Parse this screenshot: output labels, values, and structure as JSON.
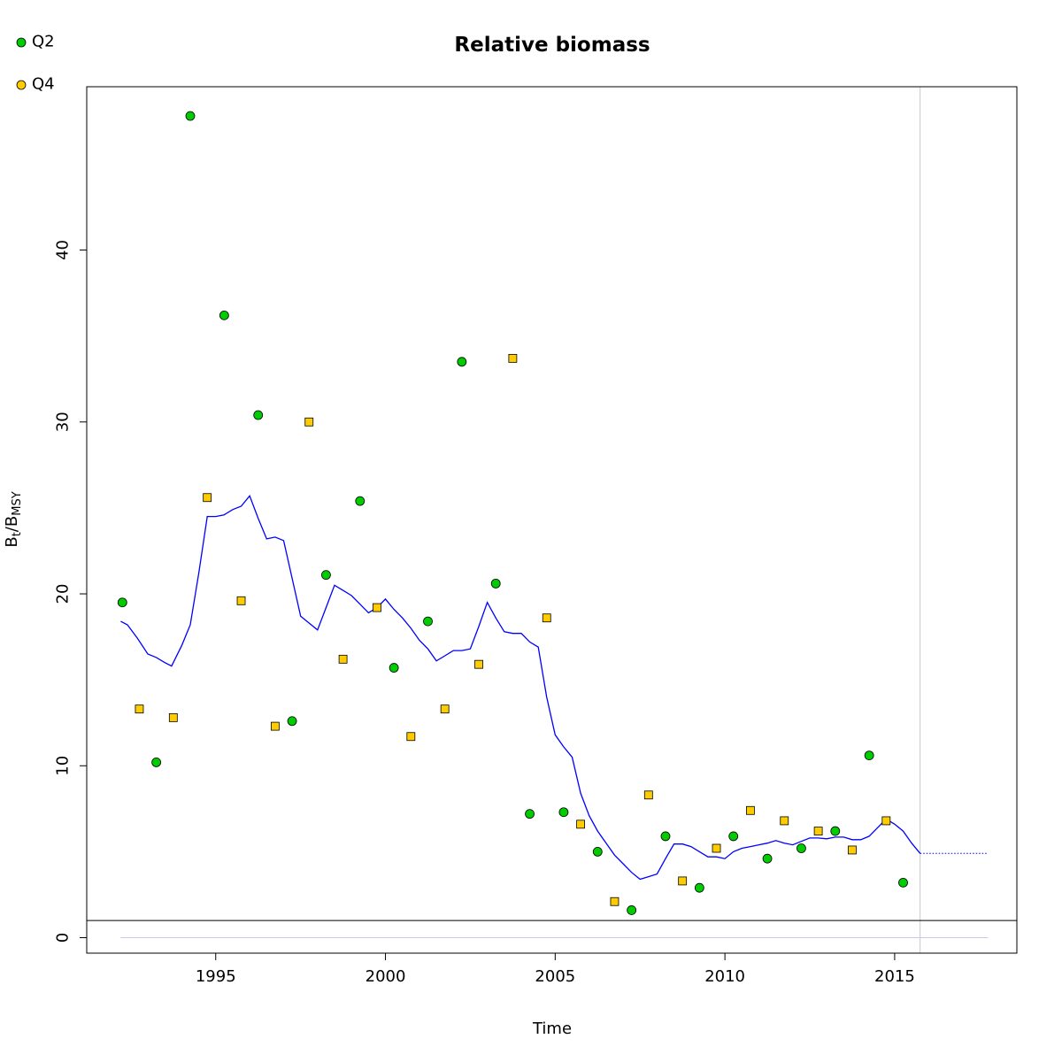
{
  "chart_data": {
    "type": "scatter",
    "title": "Relative biomass",
    "xlabel": "Time",
    "ylabel": {
      "base": "B",
      "sub1": "t",
      "mid": "/B",
      "sub2": "MSY"
    },
    "xlim": [
      1991.2,
      2018.6
    ],
    "ylim": [
      -0.9,
      49.5
    ],
    "x_ticks": [
      1995,
      2000,
      2005,
      2010,
      2015
    ],
    "y_ticks": [
      0,
      10,
      20,
      30,
      40
    ],
    "grid": false,
    "legend_position": "top-left",
    "colors": {
      "Q2": "#00cc00",
      "Q4": "#ffcc00",
      "line": "#0000ff",
      "reference": "#000000",
      "vline": "#c8c8c8"
    },
    "series": [
      {
        "name": "Q2",
        "marker": "circle",
        "points": [
          [
            1992.25,
            19.5
          ],
          [
            1993.25,
            10.2
          ],
          [
            1994.25,
            47.8
          ],
          [
            1995.25,
            36.2
          ],
          [
            1996.25,
            30.4
          ],
          [
            1997.25,
            12.6
          ],
          [
            1998.25,
            21.1
          ],
          [
            1999.25,
            25.4
          ],
          [
            2000.25,
            15.7
          ],
          [
            2001.25,
            18.4
          ],
          [
            2002.25,
            33.5
          ],
          [
            2003.25,
            20.6
          ],
          [
            2004.25,
            7.2
          ],
          [
            2005.25,
            7.3
          ],
          [
            2006.25,
            5.0
          ],
          [
            2007.25,
            1.6
          ],
          [
            2008.25,
            5.9
          ],
          [
            2009.25,
            2.9
          ],
          [
            2010.25,
            5.9
          ],
          [
            2011.25,
            4.6
          ],
          [
            2012.25,
            5.2
          ],
          [
            2013.25,
            6.2
          ],
          [
            2014.25,
            10.6
          ],
          [
            2015.25,
            3.2
          ]
        ]
      },
      {
        "name": "Q4",
        "marker": "square",
        "points": [
          [
            1992.75,
            13.3
          ],
          [
            1993.75,
            12.8
          ],
          [
            1994.75,
            25.6
          ],
          [
            1995.75,
            19.6
          ],
          [
            1996.75,
            12.3
          ],
          [
            1997.75,
            30.0
          ],
          [
            1998.75,
            16.2
          ],
          [
            1999.75,
            19.2
          ],
          [
            2000.75,
            11.7
          ],
          [
            2001.75,
            13.3
          ],
          [
            2002.75,
            15.9
          ],
          [
            2003.75,
            33.7
          ],
          [
            2004.75,
            18.6
          ],
          [
            2005.75,
            6.6
          ],
          [
            2006.75,
            2.1
          ],
          [
            2007.75,
            8.3
          ],
          [
            2008.75,
            3.3
          ],
          [
            2009.75,
            5.2
          ],
          [
            2010.75,
            7.4
          ],
          [
            2011.75,
            6.8
          ],
          [
            2012.75,
            6.2
          ],
          [
            2013.75,
            5.1
          ],
          [
            2014.75,
            6.8
          ]
        ]
      }
    ],
    "estimate_line": [
      [
        1992.2,
        18.4
      ],
      [
        1992.4,
        18.2
      ],
      [
        1992.7,
        17.4
      ],
      [
        1993.0,
        16.5
      ],
      [
        1993.25,
        16.3
      ],
      [
        1993.5,
        16.0
      ],
      [
        1993.7,
        15.8
      ],
      [
        1994.0,
        17.0
      ],
      [
        1994.25,
        18.2
      ],
      [
        1994.5,
        21.2
      ],
      [
        1994.75,
        24.5
      ],
      [
        1995.0,
        24.5
      ],
      [
        1995.25,
        24.6
      ],
      [
        1995.5,
        24.9
      ],
      [
        1995.75,
        25.1
      ],
      [
        1996.0,
        25.7
      ],
      [
        1996.25,
        24.4
      ],
      [
        1996.5,
        23.2
      ],
      [
        1996.75,
        23.3
      ],
      [
        1997.0,
        23.1
      ],
      [
        1997.25,
        20.9
      ],
      [
        1997.5,
        18.7
      ],
      [
        1997.75,
        18.3
      ],
      [
        1998.0,
        17.9
      ],
      [
        1998.25,
        19.2
      ],
      [
        1998.5,
        20.5
      ],
      [
        1998.75,
        20.2
      ],
      [
        1999.0,
        19.9
      ],
      [
        1999.25,
        19.4
      ],
      [
        1999.5,
        18.9
      ],
      [
        1999.75,
        19.2
      ],
      [
        2000.0,
        19.7
      ],
      [
        2000.25,
        19.1
      ],
      [
        2000.5,
        18.6
      ],
      [
        2000.75,
        18.0
      ],
      [
        2001.0,
        17.3
      ],
      [
        2001.25,
        16.8
      ],
      [
        2001.5,
        16.1
      ],
      [
        2001.75,
        16.4
      ],
      [
        2002.0,
        16.7
      ],
      [
        2002.25,
        16.7
      ],
      [
        2002.5,
        16.8
      ],
      [
        2002.75,
        18.1
      ],
      [
        2003.0,
        19.5
      ],
      [
        2003.25,
        18.6
      ],
      [
        2003.5,
        17.8
      ],
      [
        2003.75,
        17.7
      ],
      [
        2004.0,
        17.7
      ],
      [
        2004.25,
        17.2
      ],
      [
        2004.5,
        16.9
      ],
      [
        2004.75,
        14.0
      ],
      [
        2005.0,
        11.8
      ],
      [
        2005.25,
        11.1
      ],
      [
        2005.5,
        10.5
      ],
      [
        2005.75,
        8.4
      ],
      [
        2006.0,
        7.1
      ],
      [
        2006.25,
        6.2
      ],
      [
        2006.5,
        5.5
      ],
      [
        2006.75,
        4.8
      ],
      [
        2007.0,
        4.3
      ],
      [
        2007.25,
        3.8
      ],
      [
        2007.5,
        3.4
      ],
      [
        2007.75,
        3.55
      ],
      [
        2008.0,
        3.7
      ],
      [
        2008.25,
        4.6
      ],
      [
        2008.5,
        5.45
      ],
      [
        2008.75,
        5.45
      ],
      [
        2009.0,
        5.3
      ],
      [
        2009.25,
        5.0
      ],
      [
        2009.5,
        4.7
      ],
      [
        2009.75,
        4.7
      ],
      [
        2010.0,
        4.6
      ],
      [
        2010.25,
        5.0
      ],
      [
        2010.5,
        5.2
      ],
      [
        2010.75,
        5.3
      ],
      [
        2011.0,
        5.4
      ],
      [
        2011.25,
        5.5
      ],
      [
        2011.5,
        5.65
      ],
      [
        2011.75,
        5.5
      ],
      [
        2012.0,
        5.4
      ],
      [
        2012.25,
        5.6
      ],
      [
        2012.5,
        5.8
      ],
      [
        2012.75,
        5.8
      ],
      [
        2013.0,
        5.75
      ],
      [
        2013.25,
        5.85
      ],
      [
        2013.5,
        5.85
      ],
      [
        2013.75,
        5.7
      ],
      [
        2014.0,
        5.7
      ],
      [
        2014.25,
        5.9
      ],
      [
        2014.5,
        6.4
      ],
      [
        2014.75,
        6.9
      ],
      [
        2015.0,
        6.6
      ],
      [
        2015.25,
        6.2
      ],
      [
        2015.5,
        5.5
      ],
      [
        2015.75,
        4.9
      ]
    ],
    "projection_line": [
      [
        2015.75,
        4.9
      ],
      [
        2017.75,
        4.9
      ]
    ],
    "reference_hline": 1.0,
    "zero_line_range": [
      1992.2,
      2017.75
    ],
    "vline_x": 2015.75
  }
}
